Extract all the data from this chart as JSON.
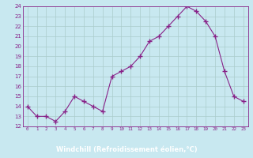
{
  "x": [
    0,
    1,
    2,
    3,
    4,
    5,
    6,
    7,
    8,
    9,
    10,
    11,
    12,
    13,
    14,
    15,
    16,
    17,
    18,
    19,
    20,
    21,
    22,
    23
  ],
  "y": [
    14.0,
    13.0,
    13.0,
    12.5,
    13.5,
    15.0,
    14.5,
    14.0,
    13.5,
    17.0,
    17.5,
    18.0,
    19.0,
    20.5,
    21.0,
    22.0,
    23.0,
    24.0,
    23.5,
    22.5,
    21.0,
    17.5,
    15.0,
    14.5
  ],
  "line_color": "#882288",
  "marker": "+",
  "bg_color": "#c8e8f0",
  "grid_color": "#aacccc",
  "xlabel": "Windchill (Refroidissement éolien,°C)",
  "ylim": [
    12,
    24
  ],
  "xlim": [
    -0.5,
    23.5
  ],
  "yticks": [
    12,
    13,
    14,
    15,
    16,
    17,
    18,
    19,
    20,
    21,
    22,
    23,
    24
  ],
  "xticks": [
    0,
    1,
    2,
    3,
    4,
    5,
    6,
    7,
    8,
    9,
    10,
    11,
    12,
    13,
    14,
    15,
    16,
    17,
    18,
    19,
    20,
    21,
    22,
    23
  ],
  "xlabel_color": "#ffffff",
  "xlabel_bg": "#993399",
  "tick_label_color": "#882288",
  "spine_color": "#882288",
  "title_bg": "#c8e8f0"
}
